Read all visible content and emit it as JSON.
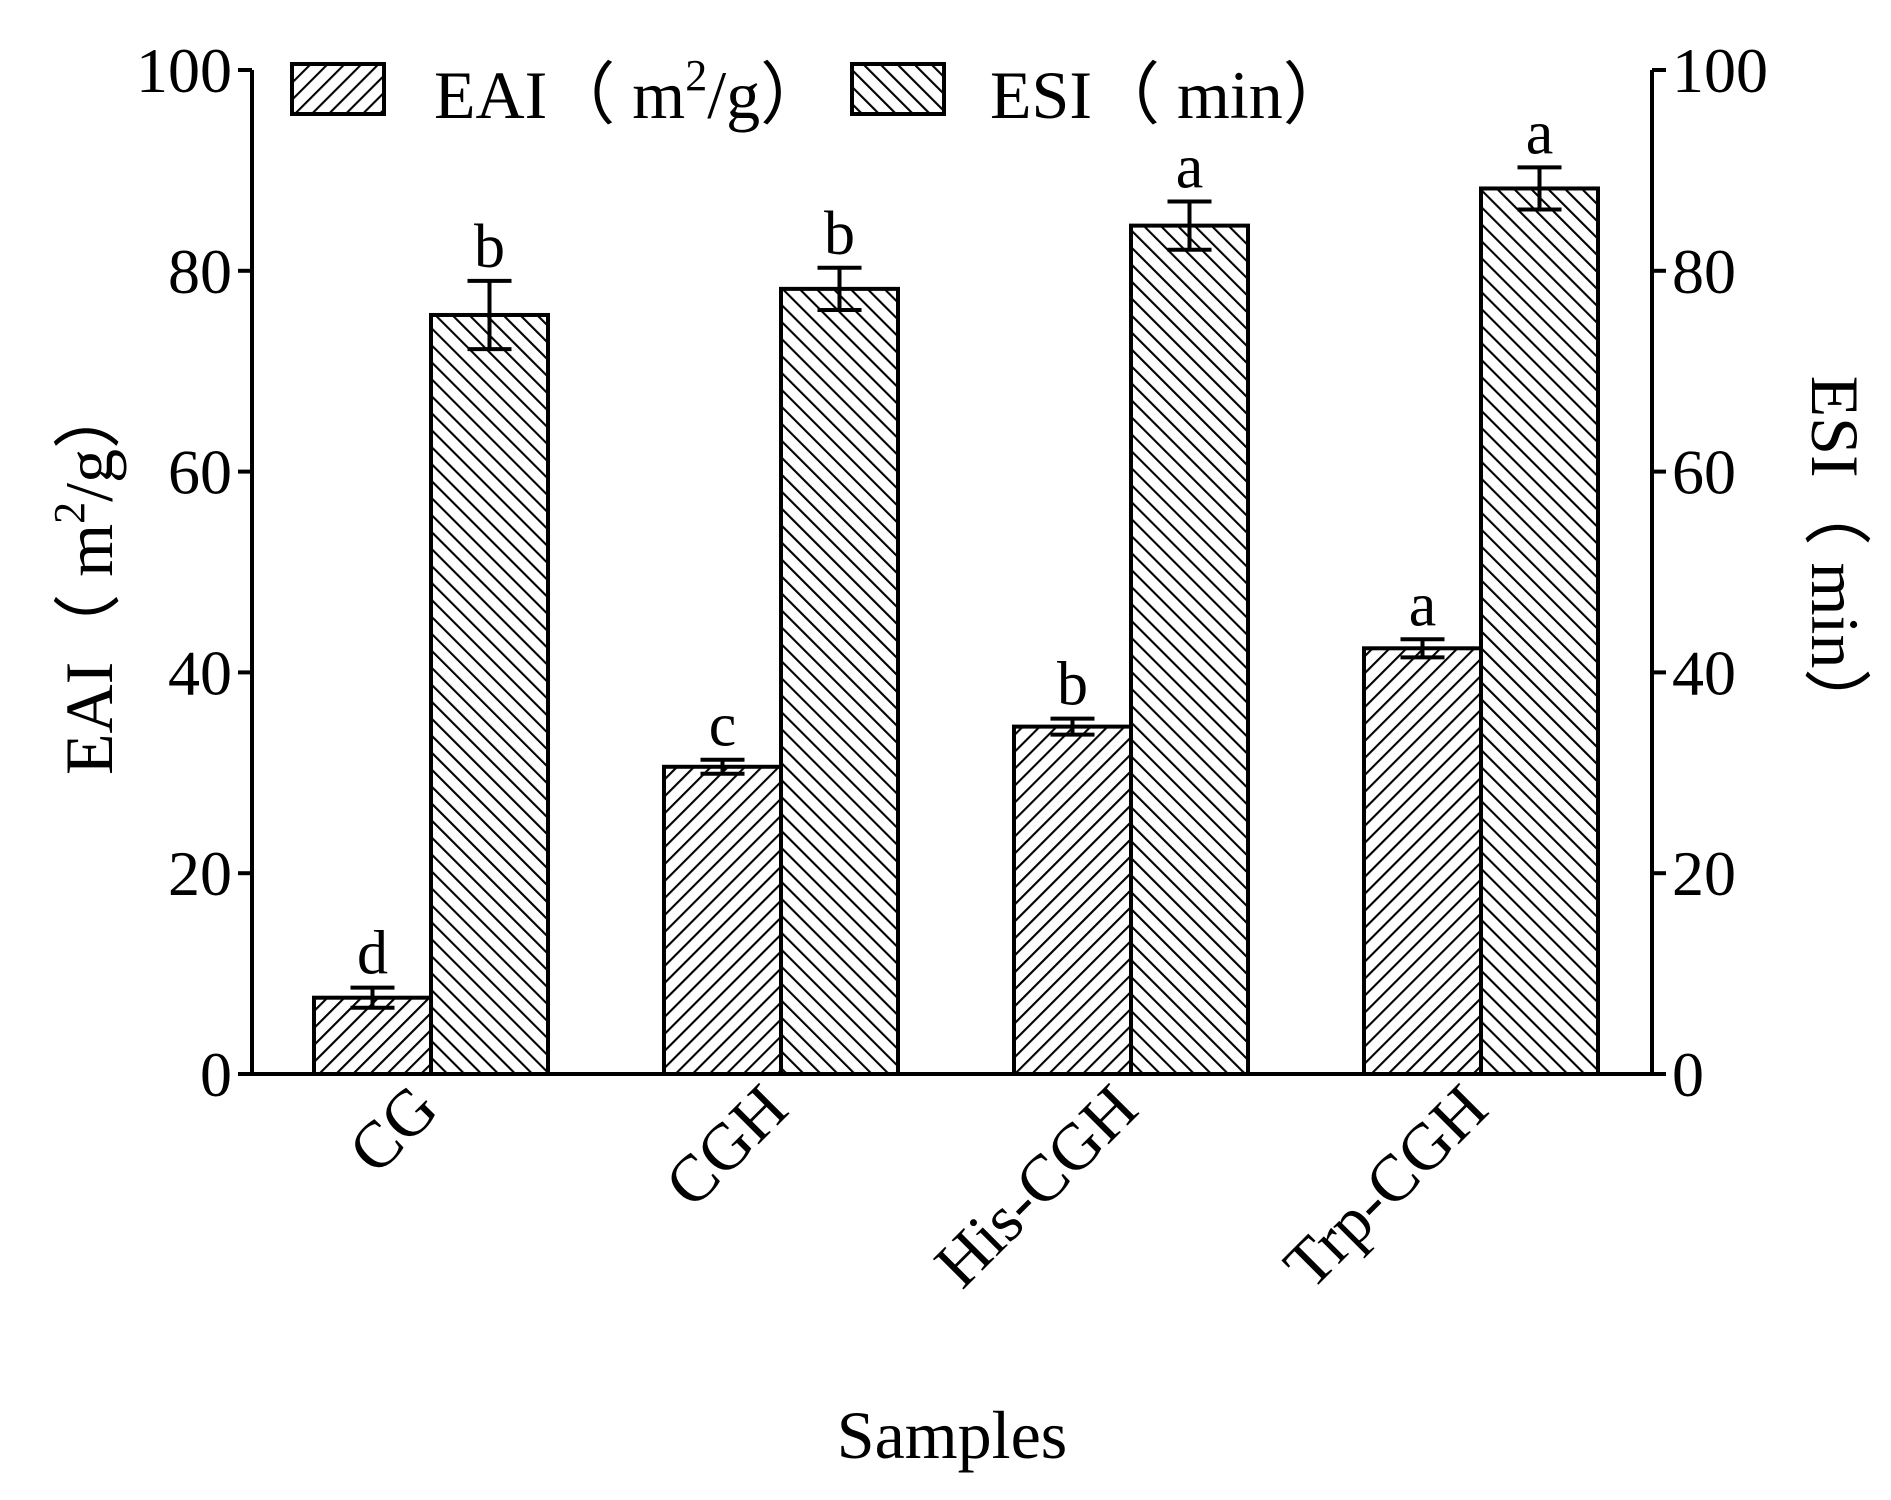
{
  "chart_data": {
    "type": "bar",
    "categories": [
      "CG",
      "CGH",
      "His-CGH",
      "Trp-CGH"
    ],
    "series": [
      {
        "name": "EAI",
        "legend_main": "EAI（ m",
        "legend_sup": "2",
        "legend_tail": "/g）",
        "axis": "left",
        "values": [
          7.6,
          30.6,
          34.6,
          42.4
        ],
        "errors": [
          1.0,
          0.7,
          0.8,
          0.9
        ],
        "letters": [
          "d",
          "c",
          "b",
          "a"
        ],
        "pattern": "backslash"
      },
      {
        "name": "ESI",
        "legend_main": "ESI（ min）",
        "axis": "right",
        "values": [
          75.6,
          78.2,
          84.5,
          88.2
        ],
        "errors": [
          3.4,
          2.1,
          2.4,
          2.1
        ],
        "letters": [
          "b",
          "b",
          "a",
          "a"
        ],
        "pattern": "slash"
      }
    ],
    "xlabel": "Samples",
    "ylabel_left_main": "EAI（ m",
    "ylabel_left_sup": "2",
    "ylabel_left_tail": "/g）",
    "ylabel_right": "ESI（ min）",
    "ylim_left": [
      0,
      100
    ],
    "ylim_right": [
      0,
      100
    ],
    "yticks": [
      0,
      20,
      40,
      60,
      80,
      100
    ],
    "grid": false,
    "legend_position": "top-left"
  }
}
